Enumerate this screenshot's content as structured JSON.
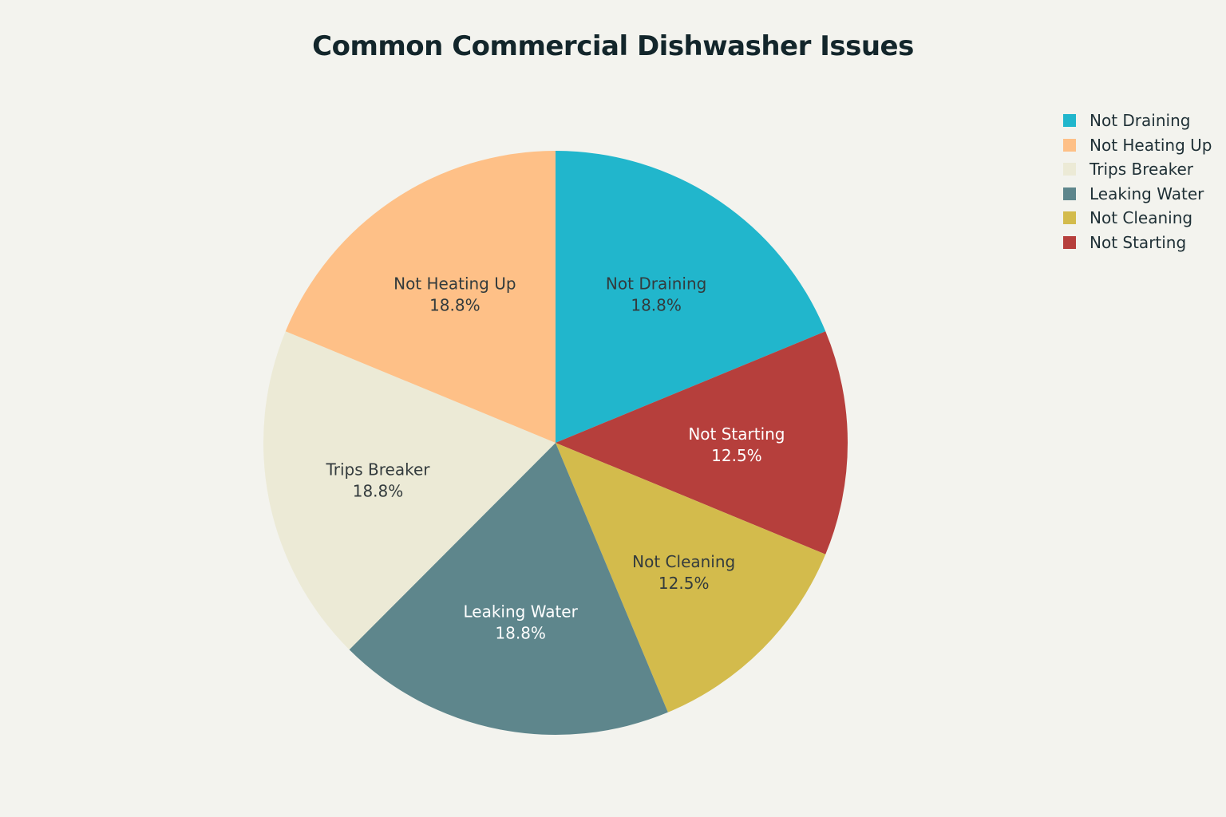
{
  "chart_data": {
    "type": "pie",
    "title": "Common Commercial Dishwasher Issues",
    "slices": [
      {
        "label": "Not Draining",
        "value": 18.8,
        "percent_label": "18.8%",
        "color": "#21b6cc",
        "text_color": "#333b3d"
      },
      {
        "label": "Not Starting",
        "value": 12.5,
        "percent_label": "12.5%",
        "color": "#b63f3c",
        "text_color": "#ffffff"
      },
      {
        "label": "Not Cleaning",
        "value": 12.5,
        "percent_label": "12.5%",
        "color": "#d3bb4c",
        "text_color": "#333b3d"
      },
      {
        "label": "Leaking Water",
        "value": 18.8,
        "percent_label": "18.8%",
        "color": "#5e868c",
        "text_color": "#ffffff"
      },
      {
        "label": "Trips Breaker",
        "value": 18.8,
        "percent_label": "18.8%",
        "color": "#ecead6",
        "text_color": "#333b3d"
      },
      {
        "label": "Not Heating Up",
        "value": 18.8,
        "percent_label": "18.8%",
        "color": "#fec087",
        "text_color": "#333b3d"
      }
    ],
    "legend": {
      "position": "top-right",
      "items": [
        {
          "label": "Not Draining",
          "color": "#21b6cc"
        },
        {
          "label": "Not Heating Up",
          "color": "#fec087"
        },
        {
          "label": "Trips Breaker",
          "color": "#ecead6"
        },
        {
          "label": "Leaking Water",
          "color": "#5e868c"
        },
        {
          "label": "Not Cleaning",
          "color": "#d3bb4c"
        },
        {
          "label": "Not Starting",
          "color": "#b63f3c"
        }
      ]
    },
    "start_direction": "top",
    "direction": "clockwise"
  }
}
